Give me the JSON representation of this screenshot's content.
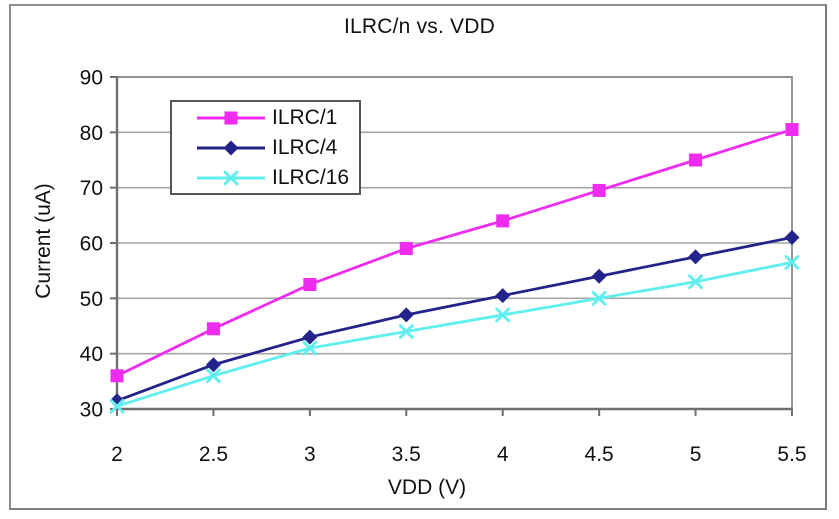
{
  "window": {
    "background": "#ffffff",
    "border_color": "#8e8e8e"
  },
  "chart_data": {
    "type": "line",
    "title": "ILRC/n vs. VDD",
    "xlabel": "VDD (V)",
    "ylabel": "Current (uA)",
    "x": [
      2,
      2.5,
      3,
      3.5,
      4,
      4.5,
      5,
      5.5
    ],
    "x_tick_labels": [
      "2",
      "2.5",
      "3",
      "3.5",
      "4",
      "4.5",
      "5",
      "5.5"
    ],
    "y_ticks": [
      30,
      40,
      50,
      60,
      70,
      80,
      90
    ],
    "xlim": [
      2,
      5.5
    ],
    "ylim": [
      30,
      90
    ],
    "grid": "horizontal-only",
    "legend_position": "inside-upper-left",
    "series": [
      {
        "name": "ILRC/1",
        "marker": "square",
        "color": "#ee2bee",
        "values": [
          36,
          44.5,
          52.5,
          59,
          64,
          69.5,
          75,
          80.5
        ]
      },
      {
        "name": "ILRC/4",
        "marker": "diamond",
        "color": "#23238b",
        "values": [
          31.5,
          38,
          43,
          47,
          50.5,
          54,
          57.5,
          61
        ]
      },
      {
        "name": "ILRC/16",
        "marker": "x",
        "color": "#5fefef",
        "values": [
          30.5,
          36,
          41,
          44,
          47,
          50,
          53,
          56.5
        ]
      }
    ],
    "style": {
      "gridline_color": "#a6a6a6",
      "frame_color": "#8a8a8a",
      "axis_color": "#6f6f6f",
      "text_color": "#111111",
      "plot_background": "#ffffff"
    }
  }
}
